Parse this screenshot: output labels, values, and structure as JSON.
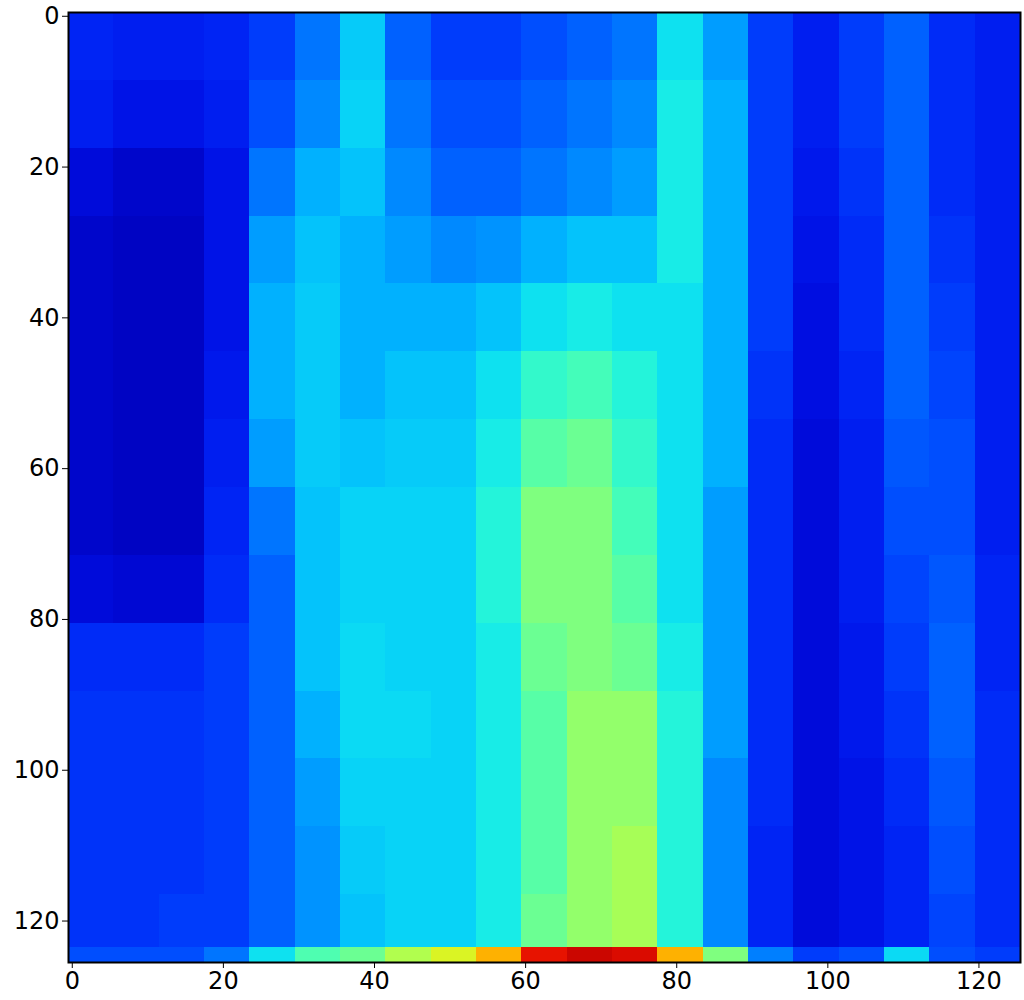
{
  "chart_data": {
    "type": "heatmap",
    "xlim": [
      -0.5,
      125.5
    ],
    "ylim": [
      125.5,
      -0.5
    ],
    "xticks": [
      0,
      20,
      40,
      60,
      80,
      100,
      120
    ],
    "yticks": [
      0,
      20,
      40,
      60,
      80,
      100,
      120
    ],
    "x_edges": [
      -0.5,
      5.5,
      11.5,
      17.5,
      23.5,
      29.5,
      35.5,
      41.5,
      47.5,
      53.5,
      59.5,
      65.5,
      71.5,
      77.5,
      83.5,
      89.5,
      95.5,
      101.5,
      107.5,
      113.5,
      119.5,
      125.5
    ],
    "y_edges": [
      -0.5,
      8.5,
      17.5,
      26.5,
      35.5,
      44.5,
      53.5,
      62.5,
      71.5,
      80.5,
      89.5,
      98.5,
      107.5,
      116.5,
      123.5,
      125.5
    ],
    "color_range": [
      0,
      100
    ],
    "cells": [
      [
        15,
        14,
        14,
        15,
        18,
        24,
        33,
        22,
        18,
        18,
        20,
        22,
        24,
        36,
        28,
        18,
        14,
        18,
        22,
        16,
        14
      ],
      [
        14,
        12,
        12,
        14,
        20,
        26,
        34,
        24,
        20,
        20,
        22,
        24,
        26,
        38,
        30,
        18,
        14,
        18,
        22,
        16,
        14
      ],
      [
        10,
        8,
        8,
        12,
        24,
        30,
        32,
        26,
        22,
        22,
        24,
        26,
        28,
        38,
        30,
        18,
        13,
        17,
        22,
        16,
        14
      ],
      [
        8,
        7,
        7,
        12,
        28,
        32,
        30,
        28,
        26,
        27,
        30,
        32,
        32,
        38,
        30,
        18,
        12,
        16,
        22,
        17,
        14
      ],
      [
        8,
        7,
        7,
        12,
        30,
        33,
        30,
        30,
        30,
        32,
        36,
        38,
        36,
        36,
        30,
        18,
        11,
        16,
        22,
        18,
        14
      ],
      [
        8,
        7,
        7,
        13,
        30,
        33,
        30,
        32,
        32,
        36,
        42,
        44,
        40,
        36,
        30,
        17,
        11,
        15,
        22,
        19,
        14
      ],
      [
        8,
        7,
        7,
        14,
        28,
        33,
        32,
        33,
        33,
        38,
        46,
        48,
        42,
        36,
        30,
        16,
        10,
        14,
        21,
        20,
        14
      ],
      [
        8,
        7,
        7,
        15,
        24,
        32,
        34,
        34,
        34,
        40,
        50,
        50,
        44,
        36,
        28,
        16,
        10,
        14,
        20,
        20,
        14
      ],
      [
        10,
        9,
        9,
        16,
        22,
        32,
        34,
        34,
        34,
        40,
        50,
        50,
        46,
        36,
        28,
        16,
        10,
        14,
        19,
        21,
        15
      ],
      [
        16,
        16,
        16,
        18,
        22,
        32,
        35,
        34,
        34,
        38,
        48,
        50,
        48,
        38,
        28,
        16,
        10,
        13,
        18,
        22,
        15
      ],
      [
        17,
        17,
        17,
        18,
        22,
        30,
        35,
        35,
        34,
        38,
        46,
        52,
        52,
        40,
        28,
        16,
        10,
        13,
        17,
        22,
        16
      ],
      [
        17,
        17,
        17,
        18,
        22,
        28,
        34,
        34,
        34,
        38,
        46,
        52,
        52,
        40,
        26,
        16,
        10,
        12,
        16,
        21,
        16
      ],
      [
        17,
        17,
        17,
        18,
        22,
        27,
        33,
        34,
        34,
        38,
        46,
        52,
        54,
        40,
        26,
        15,
        10,
        12,
        15,
        20,
        16
      ],
      [
        17,
        17,
        18,
        18,
        22,
        27,
        32,
        34,
        34,
        38,
        48,
        52,
        54,
        40,
        26,
        15,
        10,
        12,
        15,
        19,
        16
      ],
      [
        20,
        20,
        20,
        24,
        36,
        45,
        48,
        55,
        60,
        70,
        88,
        92,
        90,
        70,
        50,
        25,
        18,
        20,
        35,
        20,
        18
      ]
    ]
  }
}
